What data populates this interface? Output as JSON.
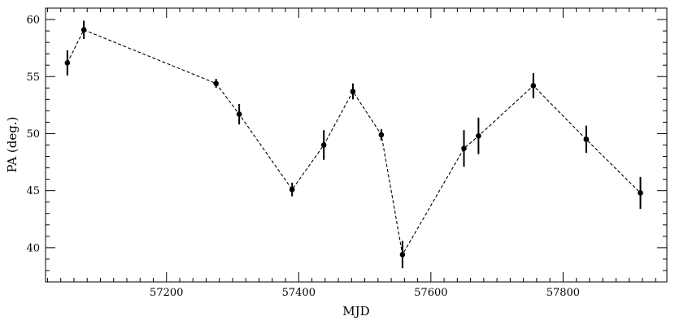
{
  "chart_data": {
    "type": "scatter",
    "title": "",
    "xlabel": "MJD",
    "ylabel": "PA (deg.)",
    "xlim": [
      57017,
      57957
    ],
    "ylim": [
      37,
      61
    ],
    "xticks": [
      57200,
      57400,
      57600,
      57800
    ],
    "xtick_labels": [
      "57200",
      "57400",
      "57600",
      "57800"
    ],
    "yticks": [
      40,
      45,
      50,
      55,
      60
    ],
    "ytick_labels": [
      "40",
      "45",
      "50",
      "55",
      "60"
    ],
    "grid": false,
    "legend": "none",
    "connect_points": true,
    "line_style": "dashed",
    "color": "#000000",
    "series": [
      {
        "x": [
          57050,
          57075,
          57275,
          57310,
          57390,
          57438,
          57482,
          57525,
          57557,
          57650,
          57672,
          57755,
          57835,
          57917
        ],
        "y": [
          56.2,
          59.1,
          54.4,
          51.7,
          45.1,
          49.0,
          53.7,
          49.9,
          39.4,
          48.7,
          49.8,
          54.2,
          49.5,
          44.8
        ],
        "err": [
          1.1,
          0.8,
          0.4,
          0.9,
          0.6,
          1.3,
          0.7,
          0.5,
          1.2,
          1.6,
          1.6,
          1.1,
          1.2,
          1.4
        ]
      }
    ]
  }
}
